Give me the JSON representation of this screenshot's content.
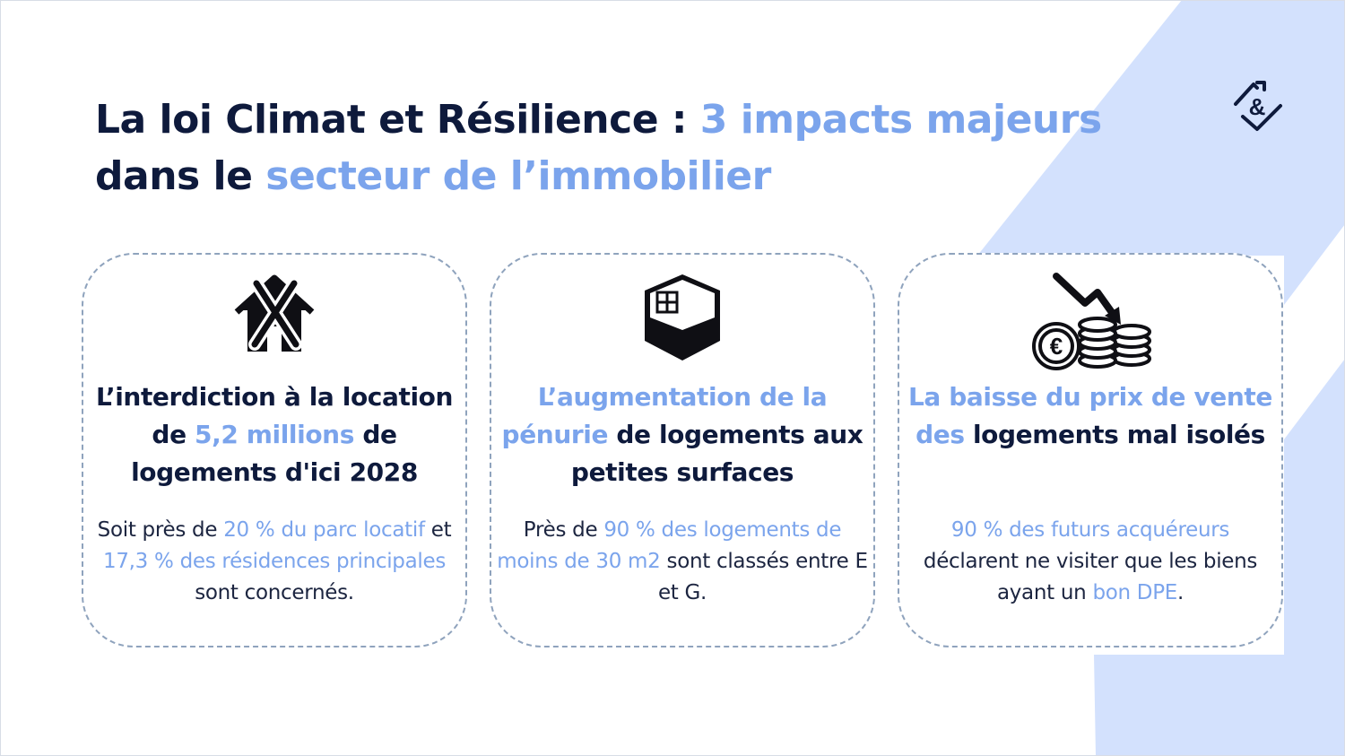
{
  "title": {
    "line1_dark": "La loi Climat et Résilience : ",
    "line1_accent": "3 impacts majeurs",
    "line2_dark": "dans le ",
    "line2_accent": "secteur de l’immobilier"
  },
  "colors": {
    "text_dark": "#0e1a3c",
    "accent": "#7ba4ec",
    "background_shape": "#d3e1fd",
    "card_border": "#8fa3bd"
  },
  "logo": {
    "icon": "ampersand-house-check-icon",
    "text": "&"
  },
  "cards": [
    {
      "icon": "house-crossed-icon",
      "heading": {
        "p1": "L’interdiction à la location de ",
        "p2": "5,2 millions",
        "p3": " de logements  d'ici 2028"
      },
      "body": {
        "p1": "Soit près de ",
        "p2": "20 % du parc locatif",
        "p3": " et ",
        "p4": "17,3 % des résidences principales",
        "p5": " sont concernés."
      }
    },
    {
      "icon": "small-room-cube-icon",
      "heading": {
        "p1": "L’augmentation de la pénurie",
        "p2": " de logements aux petites surfaces"
      },
      "body": {
        "p1": "Près de ",
        "p2": "90 % des logements de moins de 30 m2",
        "p3": " sont classés entre E et G."
      }
    },
    {
      "icon": "euro-coins-down-arrow-icon",
      "heading": {
        "p1": "La baisse du prix de vente des",
        "p2": " logements mal isolés"
      },
      "body": {
        "p1": "90 % des futurs acquéreurs",
        "p2": " déclarent ne visiter que les biens ayant un ",
        "p3": "bon DPE",
        "p4": "."
      }
    }
  ]
}
